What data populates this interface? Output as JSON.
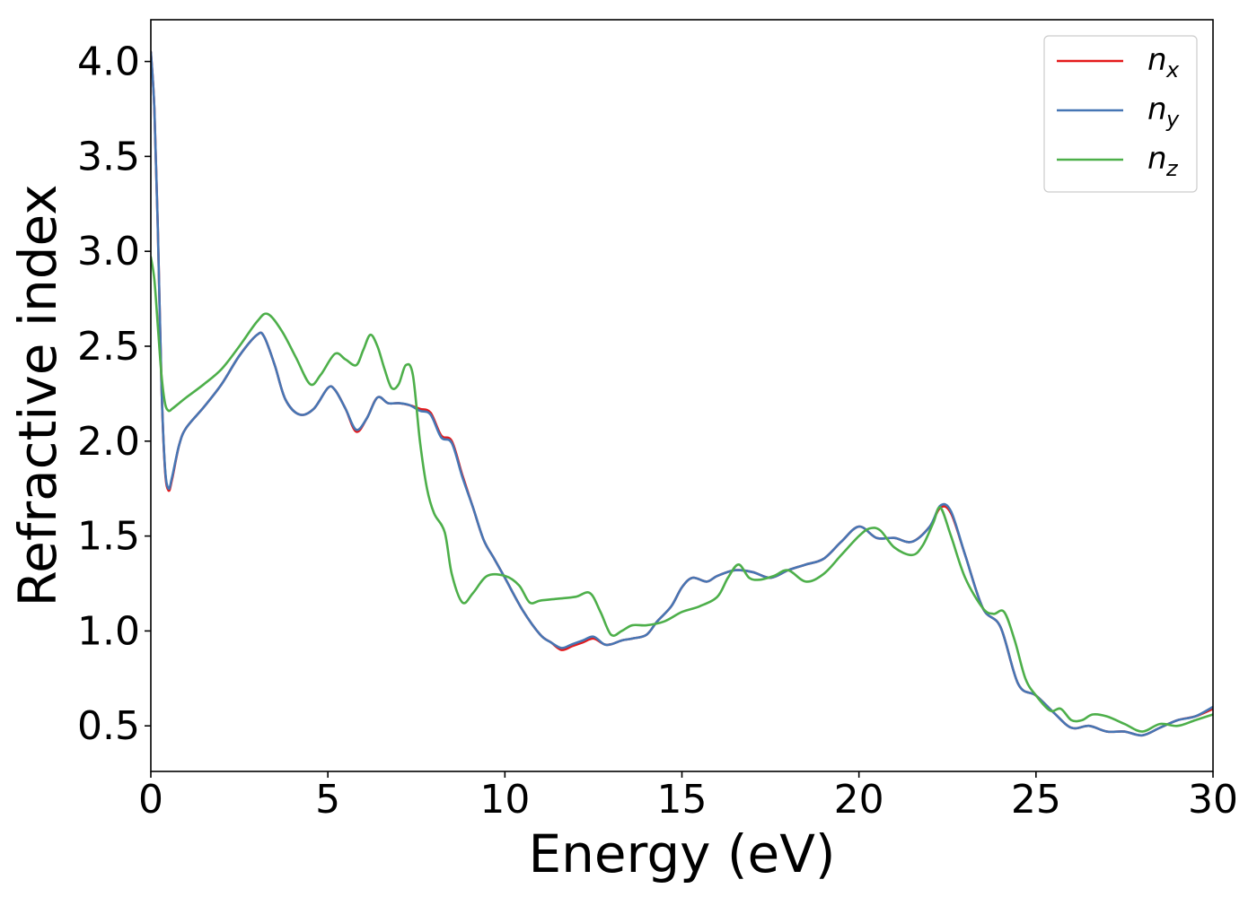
{
  "chart_data": {
    "type": "line",
    "xlabel": "Energy (eV)",
    "ylabel": "Refractive index",
    "xlim": [
      0,
      30
    ],
    "ylim": [
      0.26,
      4.22
    ],
    "xticks": [
      0,
      5,
      10,
      15,
      20,
      25,
      30
    ],
    "xtick_labels": [
      "0",
      "5",
      "10",
      "15",
      "20",
      "25",
      "30"
    ],
    "yticks": [
      0.5,
      1.0,
      1.5,
      2.0,
      2.5,
      3.0,
      3.5,
      4.0
    ],
    "ytick_labels": [
      "0.5",
      "1.0",
      "1.5",
      "2.0",
      "2.5",
      "3.0",
      "3.5",
      "4.0"
    ],
    "grid": false,
    "legend_position": "top-right",
    "series": [
      {
        "name": "n_x",
        "label_base": "n",
        "label_sub": "x",
        "color": "#e41a1c",
        "x": [
          0,
          0.1,
          0.2,
          0.3,
          0.4,
          0.5,
          0.6,
          0.8,
          1.0,
          1.5,
          2.0,
          2.5,
          3.0,
          3.2,
          3.5,
          3.8,
          4.2,
          4.6,
          5.0,
          5.2,
          5.5,
          5.8,
          6.1,
          6.4,
          6.7,
          7.0,
          7.3,
          7.6,
          7.9,
          8.2,
          8.5,
          8.8,
          9.1,
          9.4,
          9.7,
          10.0,
          10.5,
          11.0,
          11.3,
          11.6,
          11.9,
          12.2,
          12.5,
          12.8,
          13.0,
          13.3,
          13.6,
          14.0,
          14.3,
          14.7,
          15.0,
          15.3,
          15.7,
          16.0,
          16.5,
          17.0,
          17.5,
          18.0,
          18.5,
          19.0,
          19.5,
          20.0,
          20.5,
          21.0,
          21.5,
          22.0,
          22.3,
          22.6,
          23.0,
          23.5,
          24.0,
          24.5,
          25.0,
          25.5,
          26.0,
          26.5,
          27.0,
          27.5,
          28.0,
          28.5,
          29.0,
          29.5,
          30.0
        ],
        "y": [
          4.05,
          3.75,
          3.1,
          2.3,
          1.85,
          1.74,
          1.8,
          1.98,
          2.07,
          2.18,
          2.3,
          2.45,
          2.56,
          2.55,
          2.4,
          2.22,
          2.14,
          2.17,
          2.28,
          2.27,
          2.17,
          2.05,
          2.12,
          2.23,
          2.2,
          2.2,
          2.19,
          2.17,
          2.15,
          2.03,
          2.0,
          1.82,
          1.65,
          1.48,
          1.38,
          1.28,
          1.11,
          0.98,
          0.94,
          0.9,
          0.92,
          0.94,
          0.96,
          0.93,
          0.93,
          0.95,
          0.96,
          0.98,
          1.05,
          1.13,
          1.23,
          1.28,
          1.26,
          1.29,
          1.32,
          1.31,
          1.28,
          1.32,
          1.35,
          1.38,
          1.47,
          1.55,
          1.49,
          1.49,
          1.47,
          1.55,
          1.65,
          1.62,
          1.4,
          1.12,
          1.02,
          0.72,
          0.66,
          0.57,
          0.49,
          0.5,
          0.47,
          0.47,
          0.45,
          0.49,
          0.53,
          0.55,
          0.59
        ]
      },
      {
        "name": "n_y",
        "label_base": "n",
        "label_sub": "y",
        "color": "#4676b4",
        "x": [
          0,
          0.1,
          0.2,
          0.3,
          0.4,
          0.5,
          0.6,
          0.8,
          1.0,
          1.5,
          2.0,
          2.5,
          3.0,
          3.2,
          3.5,
          3.8,
          4.2,
          4.6,
          5.0,
          5.2,
          5.5,
          5.8,
          6.1,
          6.4,
          6.7,
          7.0,
          7.3,
          7.6,
          7.9,
          8.2,
          8.5,
          8.8,
          9.1,
          9.4,
          9.7,
          10.0,
          10.5,
          11.0,
          11.3,
          11.6,
          11.9,
          12.2,
          12.5,
          12.8,
          13.0,
          13.3,
          13.6,
          14.0,
          14.3,
          14.7,
          15.0,
          15.3,
          15.7,
          16.0,
          16.5,
          17.0,
          17.5,
          18.0,
          18.5,
          19.0,
          19.5,
          20.0,
          20.5,
          21.0,
          21.5,
          22.0,
          22.3,
          22.6,
          23.0,
          23.5,
          24.0,
          24.5,
          25.0,
          25.5,
          26.0,
          26.5,
          27.0,
          27.5,
          28.0,
          28.5,
          29.0,
          29.5,
          30.0
        ],
        "y": [
          4.05,
          3.75,
          3.1,
          2.3,
          1.86,
          1.75,
          1.81,
          1.98,
          2.07,
          2.18,
          2.3,
          2.45,
          2.56,
          2.55,
          2.4,
          2.22,
          2.14,
          2.17,
          2.28,
          2.27,
          2.17,
          2.06,
          2.12,
          2.23,
          2.2,
          2.2,
          2.19,
          2.16,
          2.14,
          2.02,
          1.99,
          1.81,
          1.65,
          1.48,
          1.38,
          1.28,
          1.11,
          0.98,
          0.94,
          0.91,
          0.93,
          0.95,
          0.97,
          0.93,
          0.93,
          0.95,
          0.96,
          0.98,
          1.05,
          1.13,
          1.23,
          1.28,
          1.26,
          1.29,
          1.32,
          1.31,
          1.28,
          1.32,
          1.35,
          1.38,
          1.47,
          1.55,
          1.49,
          1.49,
          1.47,
          1.55,
          1.66,
          1.63,
          1.4,
          1.12,
          1.02,
          0.72,
          0.66,
          0.57,
          0.49,
          0.5,
          0.47,
          0.47,
          0.45,
          0.49,
          0.53,
          0.55,
          0.6
        ]
      },
      {
        "name": "n_z",
        "label_base": "n",
        "label_sub": "z",
        "color": "#4daf4a",
        "x": [
          0,
          0.1,
          0.2,
          0.3,
          0.4,
          0.5,
          0.6,
          0.8,
          1.0,
          1.5,
          2.0,
          2.5,
          3.0,
          3.3,
          3.7,
          4.1,
          4.5,
          4.8,
          5.2,
          5.5,
          5.8,
          6.0,
          6.2,
          6.4,
          6.6,
          6.8,
          7.0,
          7.2,
          7.4,
          7.6,
          7.8,
          8.0,
          8.3,
          8.5,
          8.8,
          9.1,
          9.5,
          10.0,
          10.4,
          10.7,
          11.0,
          11.5,
          12.0,
          12.4,
          12.7,
          13.0,
          13.3,
          13.6,
          14.0,
          14.5,
          15.0,
          15.5,
          16.0,
          16.3,
          16.6,
          16.9,
          17.2,
          17.6,
          18.0,
          18.5,
          19.0,
          19.5,
          20.0,
          20.3,
          20.6,
          21.0,
          21.5,
          21.8,
          22.1,
          22.3,
          22.6,
          23.0,
          23.5,
          23.8,
          24.1,
          24.4,
          24.7,
          25.0,
          25.4,
          25.7,
          26.0,
          26.3,
          26.6,
          27.0,
          27.5,
          28.0,
          28.5,
          29.0,
          29.5,
          30.0
        ],
        "y": [
          2.97,
          2.85,
          2.6,
          2.35,
          2.2,
          2.16,
          2.17,
          2.2,
          2.23,
          2.3,
          2.38,
          2.5,
          2.63,
          2.67,
          2.58,
          2.44,
          2.3,
          2.35,
          2.46,
          2.43,
          2.4,
          2.48,
          2.56,
          2.5,
          2.38,
          2.28,
          2.3,
          2.4,
          2.35,
          2.0,
          1.75,
          1.62,
          1.52,
          1.3,
          1.15,
          1.2,
          1.29,
          1.29,
          1.24,
          1.15,
          1.16,
          1.17,
          1.18,
          1.2,
          1.1,
          0.98,
          1.0,
          1.03,
          1.03,
          1.05,
          1.1,
          1.13,
          1.18,
          1.28,
          1.35,
          1.28,
          1.27,
          1.29,
          1.32,
          1.26,
          1.3,
          1.4,
          1.5,
          1.54,
          1.53,
          1.44,
          1.4,
          1.45,
          1.57,
          1.65,
          1.5,
          1.28,
          1.12,
          1.09,
          1.1,
          0.95,
          0.75,
          0.66,
          0.58,
          0.59,
          0.53,
          0.53,
          0.56,
          0.55,
          0.51,
          0.47,
          0.51,
          0.5,
          0.53,
          0.56
        ]
      }
    ]
  }
}
